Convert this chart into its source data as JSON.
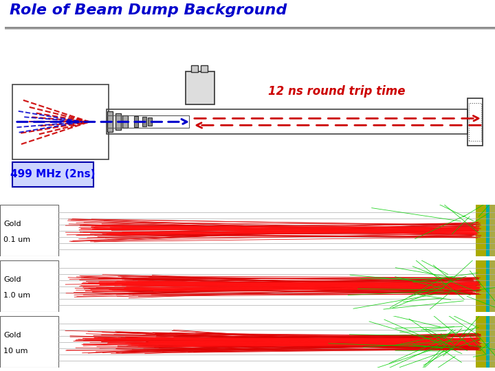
{
  "title": "Role of Beam Dump Background",
  "title_color": "#0000cc",
  "title_fontsize": 16,
  "title_style": "italic",
  "title_weight": "bold",
  "subtitle1": "12 ns round trip time",
  "subtitle1_color": "#cc0000",
  "subtitle1_fontsize": 12,
  "subtitle1_weight": "bold",
  "subtitle2": "499 MHz (2ns)",
  "subtitle2_color": "#0000ee",
  "subtitle2_fontsize": 11,
  "subtitle2_weight": "bold",
  "background_color": "#ffffff",
  "panel_labels": [
    "Gold\n0.1 um",
    "Gold\n1.0 um",
    "Gold\n10 um"
  ],
  "panel_bg": "#111111",
  "panel_label_color": "#000000",
  "panel_label_fontsize": 8
}
